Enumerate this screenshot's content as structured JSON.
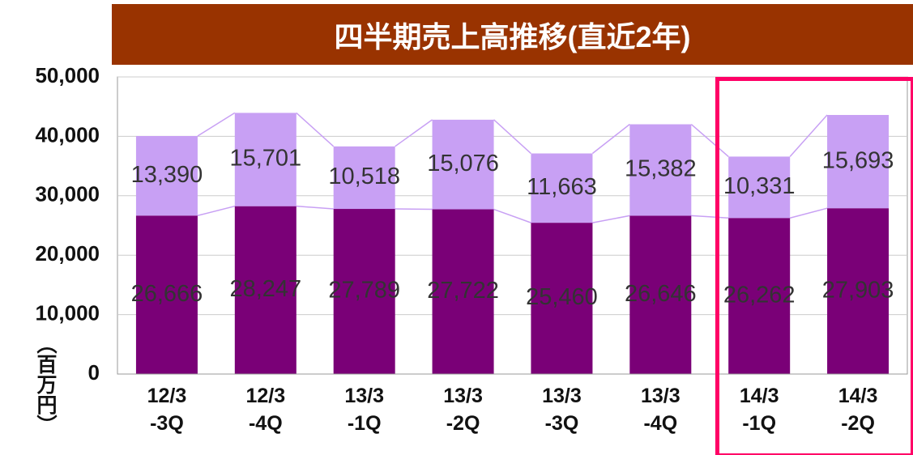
{
  "chart_data": {
    "type": "stacked_bar",
    "title": "四半期売上高推移(直近2年)",
    "y_label": "（百万円）",
    "categories": [
      "12/3\n-3Q",
      "12/3\n-4Q",
      "13/3\n-1Q",
      "13/3\n-2Q",
      "13/3\n-3Q",
      "13/3\n-4Q",
      "14/3\n-1Q",
      "14/3\n-2Q"
    ],
    "series": [
      {
        "color": "#7a0077",
        "values": [
          26666,
          28247,
          27789,
          27722,
          25460,
          26646,
          26262,
          27903
        ],
        "value_labels": [
          "26,666",
          "28,247",
          "27,789",
          "27,722",
          "25,460",
          "26,646",
          "26,262",
          "27,903"
        ]
      },
      {
        "color": "#c8a0f4",
        "values": [
          13390,
          15701,
          10518,
          15076,
          11663,
          15382,
          10331,
          15693
        ],
        "value_labels": [
          "13,390",
          "15,701",
          "10,518",
          "15,076",
          "11,663",
          "15,382",
          "10,331",
          "15,693"
        ]
      }
    ],
    "ylim": [
      0,
      50000
    ],
    "yticks": [
      0,
      {
        "value": 10000,
        "label": "10,000"
      },
      {
        "value": 20000,
        "label": "20,000"
      },
      {
        "value": 30000,
        "label": "30,000"
      },
      {
        "value": 40000,
        "label": "40,000"
      },
      {
        "value": 50000,
        "label": "50,000"
      }
    ],
    "grid": true
  }
}
